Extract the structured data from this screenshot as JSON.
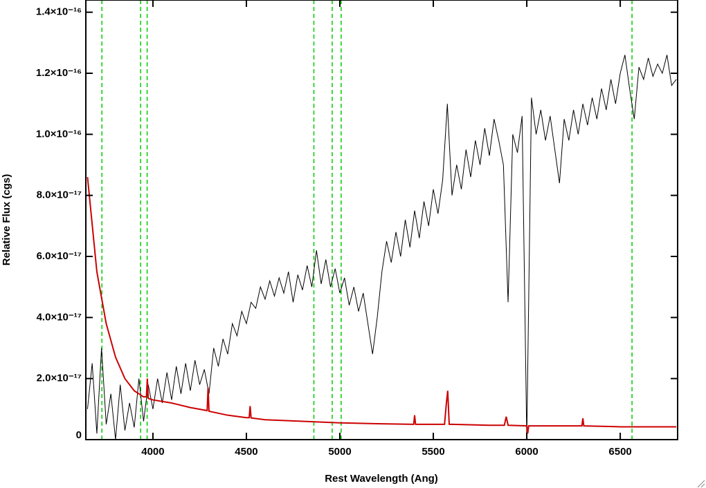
{
  "chart_data": {
    "type": "line",
    "x_label": "Rest Wavelength (Ang)",
    "y_label": "Relative Flux (cgs)",
    "xlim": [
      3641,
      6807
    ],
    "xticks": [
      4000,
      4500,
      5000,
      5500,
      6000,
      6500
    ],
    "ylim": [
      0,
      1.44e-16
    ],
    "yticks": [
      0,
      {
        "value": 2e-17,
        "label": "2.0×10⁻¹⁷"
      },
      {
        "value": 4e-17,
        "label": "4.0×10⁻¹⁷"
      },
      {
        "value": 6e-17,
        "label": "6.0×10⁻¹⁷"
      },
      {
        "value": 8e-17,
        "label": "8.0×10⁻¹⁷"
      },
      {
        "value": 1e-16,
        "label": "1.0×10⁻¹⁶"
      },
      {
        "value": 1.2e-16,
        "label": "1.2×10⁻¹⁶"
      },
      {
        "value": 1.4e-16,
        "label": "1.4×10⁻¹⁶"
      }
    ],
    "vlines": {
      "color": "#00cc00",
      "x": [
        3727,
        3934,
        3969,
        4861,
        4959,
        5007,
        6563
      ]
    },
    "series": [
      {
        "color": "#000000",
        "x": [
          3650,
          3675,
          3700,
          3725,
          3750,
          3775,
          3800,
          3825,
          3850,
          3875,
          3900,
          3925,
          3950,
          3975,
          4000,
          4025,
          4050,
          4075,
          4100,
          4125,
          4150,
          4175,
          4200,
          4225,
          4250,
          4275,
          4300,
          4325,
          4350,
          4375,
          4400,
          4425,
          4450,
          4475,
          4500,
          4525,
          4550,
          4575,
          4600,
          4625,
          4650,
          4675,
          4700,
          4725,
          4750,
          4775,
          4800,
          4825,
          4850,
          4875,
          4900,
          4925,
          4950,
          4975,
          5000,
          5025,
          5050,
          5075,
          5100,
          5125,
          5150,
          5175,
          5200,
          5225,
          5250,
          5275,
          5300,
          5325,
          5350,
          5375,
          5400,
          5425,
          5450,
          5475,
          5500,
          5525,
          5550,
          5575,
          5600,
          5625,
          5650,
          5675,
          5700,
          5725,
          5750,
          5775,
          5800,
          5825,
          5850,
          5875,
          5900,
          5925,
          5950,
          5975,
          6000,
          6025,
          6050,
          6075,
          6100,
          6125,
          6150,
          6175,
          6200,
          6225,
          6250,
          6275,
          6300,
          6325,
          6350,
          6375,
          6400,
          6425,
          6450,
          6475,
          6500,
          6525,
          6550,
          6575,
          6600,
          6625,
          6650,
          6675,
          6700,
          6725,
          6750,
          6775,
          6800
        ],
        "values": [
          1e-17,
          2.5e-17,
          2e-18,
          3e-17,
          5e-18,
          1.5e-17,
          0,
          1.8e-17,
          3e-18,
          1.2e-17,
          4e-18,
          2e-17,
          6e-18,
          1.8e-17,
          1e-17,
          2e-17,
          1.2e-17,
          2.2e-17,
          1.3e-17,
          2.4e-17,
          1.5e-17,
          2.5e-17,
          1.6e-17,
          2.6e-17,
          1.8e-17,
          2.3e-17,
          1.5e-17,
          3e-17,
          2.4e-17,
          3.3e-17,
          2.8e-17,
          3.8e-17,
          3.4e-17,
          4.2e-17,
          3.8e-17,
          4.5e-17,
          4.3e-17,
          5e-17,
          4.6e-17,
          5.2e-17,
          4.7e-17,
          5.3e-17,
          4.8e-17,
          5.5e-17,
          4.5e-17,
          5.4e-17,
          4.9e-17,
          5.7e-17,
          5e-17,
          6.2e-17,
          5.1e-17,
          5.9e-17,
          5e-17,
          5.6e-17,
          4.8e-17,
          5.3e-17,
          4.4e-17,
          5e-17,
          4.2e-17,
          4.8e-17,
          3.8e-17,
          2.8e-17,
          4e-17,
          5.5e-17,
          6.5e-17,
          5.8e-17,
          6.8e-17,
          6e-17,
          7.2e-17,
          6.3e-17,
          7.5e-17,
          6.6e-17,
          7.8e-17,
          7e-17,
          8.2e-17,
          7.4e-17,
          8.5e-17,
          1.1e-16,
          8e-17,
          9e-17,
          8.2e-17,
          9.5e-17,
          8.6e-17,
          9.8e-17,
          9e-17,
          1.02e-16,
          9.3e-17,
          1.05e-16,
          9.8e-17,
          9e-17,
          4.5e-17,
          1e-16,
          9.4e-17,
          1.06e-16,
          0,
          1.12e-16,
          1e-16,
          1.08e-16,
          9.8e-17,
          1.06e-16,
          9.5e-17,
          8.4e-17,
          1.05e-16,
          9.8e-17,
          1.08e-16,
          1e-16,
          1.1e-16,
          1.03e-16,
          1.12e-16,
          1.05e-16,
          1.15e-16,
          1.08e-16,
          1.18e-16,
          1.1e-16,
          1.2e-16,
          1.26e-16,
          1.15e-16,
          1.05e-16,
          1.22e-16,
          1.18e-16,
          1.25e-16,
          1.19e-16,
          1.23e-16,
          1.2e-16,
          1.26e-16,
          1.16e-16,
          1.18e-16
        ]
      },
      {
        "color": "#cc0000",
        "x": [
          3650,
          3700,
          3750,
          3800,
          3850,
          3900,
          3950,
          3965,
          3970,
          3975,
          4000,
          4100,
          4200,
          4290,
          4295,
          4300,
          4400,
          4500,
          4515,
          4520,
          4525,
          4600,
          4800,
          5000,
          5200,
          5395,
          5400,
          5405,
          5560,
          5570,
          5577,
          5585,
          5600,
          5800,
          5880,
          5890,
          5900,
          6000,
          6005,
          6010,
          6200,
          6295,
          6300,
          6305,
          6500,
          6800
        ],
        "values": [
          8.6e-17,
          5.5e-17,
          3.8e-17,
          2.7e-17,
          2e-17,
          1.6e-17,
          1.4e-17,
          1.4e-17,
          2e-17,
          1.35e-17,
          1.3e-17,
          1.2e-17,
          1.05e-17,
          9.5e-18,
          1.7e-17,
          9.3e-18,
          8e-18,
          7.2e-18,
          7.2e-18,
          1.1e-17,
          7.1e-18,
          6.5e-18,
          6e-18,
          5.5e-18,
          5.2e-18,
          5e-18,
          8e-18,
          5e-18,
          5e-18,
          1.2e-17,
          1.6e-17,
          5e-18,
          5e-18,
          4.7e-18,
          4.7e-18,
          7.5e-18,
          4.7e-18,
          4.5e-18,
          2e-18,
          4.5e-18,
          4.5e-18,
          4.5e-18,
          7e-18,
          4.5e-18,
          4.2e-18,
          4.2e-18
        ]
      }
    ]
  }
}
